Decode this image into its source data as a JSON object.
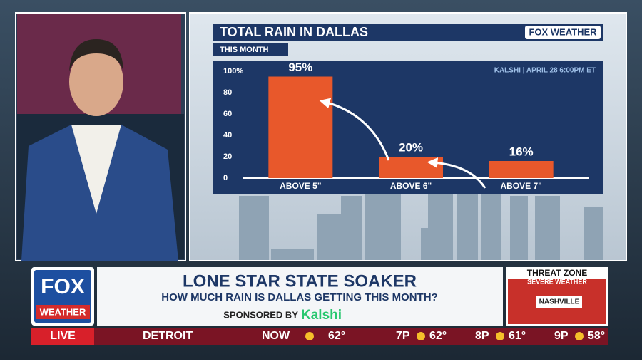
{
  "chart_data": {
    "type": "bar",
    "title": "TOTAL RAIN IN DALLAS",
    "subtitle": "THIS MONTH",
    "source": "KALSHI | APRIL 28 6:00PM ET",
    "brand": "FOX WEATHER",
    "categories": [
      "ABOVE 5\"",
      "ABOVE 6\"",
      "ABOVE 7\""
    ],
    "values": [
      95,
      20,
      16
    ],
    "value_labels": [
      "95%",
      "20%",
      "16%"
    ],
    "color": "#e8582b",
    "ylim": [
      0,
      100
    ],
    "yticks": [
      0,
      20,
      40,
      60,
      80,
      {
        "value": 100,
        "label": "100%"
      }
    ]
  },
  "logo": {
    "top": "FOX",
    "bottom": "WEATHER"
  },
  "banner": {
    "headline": "LONE STAR STATE SOAKER",
    "subhead": "HOW MUCH RAIN IS DALLAS GETTING THIS MONTH?",
    "sponsor": "SPONSORED BY",
    "sponsor_name": "Kalshi"
  },
  "threat_zone": {
    "title": "THREAT ZONE",
    "subtitle": "SEVERE WEATHER",
    "city": "NASHVILLE"
  },
  "ticker": {
    "live": "LIVE",
    "city": "DETROIT",
    "now": "NOW",
    "now_temp": "62°",
    "forecast": [
      {
        "time": "7P",
        "temp": "62°"
      },
      {
        "time": "8P",
        "temp": "61°"
      },
      {
        "time": "9P",
        "temp": "58°"
      }
    ]
  }
}
